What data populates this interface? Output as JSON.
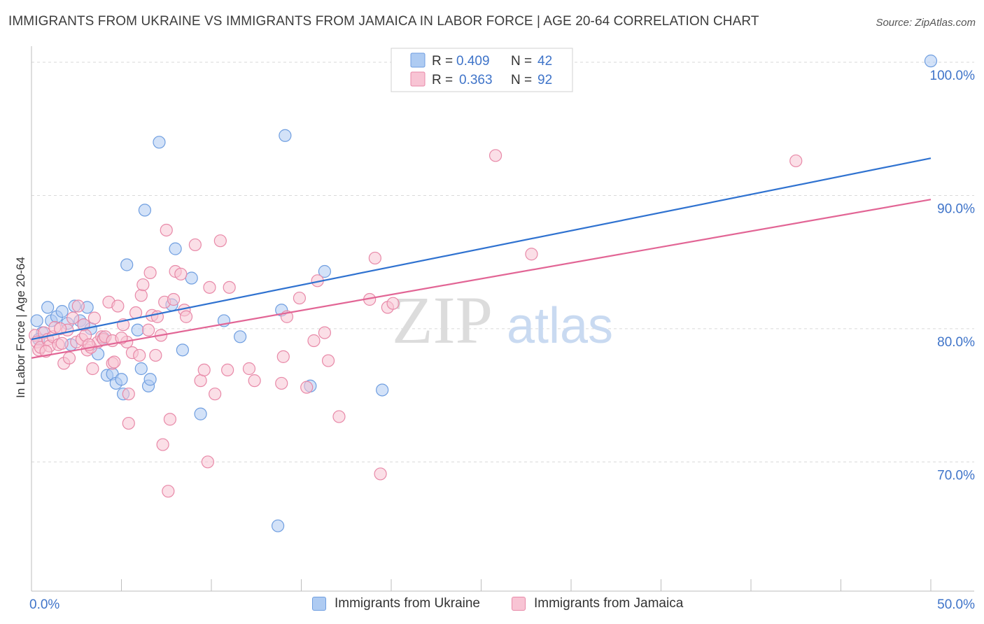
{
  "header": {
    "title": "IMMIGRANTS FROM UKRAINE VS IMMIGRANTS FROM JAMAICA IN LABOR FORCE | AGE 20-64 CORRELATION CHART",
    "source": "Source: ZipAtlas.com"
  },
  "watermark": {
    "zip": "ZIP",
    "atlas": "atlas"
  },
  "legend_top": {
    "rows": [
      {
        "r_label": "R =",
        "r_value": "0.409",
        "n_label": "N =",
        "n_value": "42"
      },
      {
        "r_label": "R =",
        "r_value": "0.363",
        "n_label": "N =",
        "n_value": "92"
      }
    ]
  },
  "legend_bottom": {
    "ukraine": "Immigrants from Ukraine",
    "jamaica": "Immigrants from Jamaica"
  },
  "colors": {
    "ukraine_fill": "#aecbf2",
    "ukraine_stroke": "#6f9ee0",
    "ukraine_line": "#2f72d0",
    "jamaica_fill": "#f8c4d4",
    "jamaica_stroke": "#e889a8",
    "jamaica_line": "#e26595",
    "axis_label": "#3f74c9",
    "grid": "#d9d9d9"
  },
  "chart_data": {
    "type": "scatter",
    "title": "IMMIGRANTS FROM UKRAINE VS IMMIGRANTS FROM JAMAICA IN LABOR FORCE | AGE 20-64 CORRELATION CHART",
    "xlabel": "",
    "ylabel": "In Labor Force | Age 20-64",
    "xlim": [
      0,
      50
    ],
    "ylim": [
      60.3,
      101
    ],
    "x_tick_labels": [
      "0.0%",
      "50.0%"
    ],
    "x_ticks": [
      0,
      5,
      10,
      15,
      20,
      25,
      30,
      35,
      40,
      45,
      50
    ],
    "y_ticks": [
      70,
      80,
      90,
      100
    ],
    "y_tick_labels": [
      "70.0%",
      "80.0%",
      "90.0%",
      "100.0%"
    ],
    "grid": true,
    "legend": "top-center",
    "series": [
      {
        "name": "Immigrants from Ukraine",
        "r": 0.409,
        "n": 42,
        "trend": [
          [
            0,
            79.2
          ],
          [
            50,
            92.8
          ]
        ],
        "points": [
          [
            0.3,
            80.6
          ],
          [
            0.6,
            79.7
          ],
          [
            0.4,
            79.2
          ],
          [
            0.9,
            81.6
          ],
          [
            1.1,
            80.6
          ],
          [
            1.4,
            80.9
          ],
          [
            1.7,
            81.3
          ],
          [
            2.0,
            80.4
          ],
          [
            2.2,
            78.8
          ],
          [
            2.4,
            81.7
          ],
          [
            2.7,
            80.6
          ],
          [
            2.9,
            80.3
          ],
          [
            3.1,
            81.6
          ],
          [
            3.3,
            80.0
          ],
          [
            3.7,
            78.1
          ],
          [
            4.0,
            79.3
          ],
          [
            4.2,
            76.5
          ],
          [
            4.5,
            76.6
          ],
          [
            4.7,
            75.9
          ],
          [
            5.0,
            76.2
          ],
          [
            5.1,
            75.1
          ],
          [
            5.3,
            84.8
          ],
          [
            5.9,
            79.9
          ],
          [
            6.1,
            77.0
          ],
          [
            6.3,
            88.9
          ],
          [
            6.5,
            75.7
          ],
          [
            6.6,
            76.2
          ],
          [
            7.1,
            94.0
          ],
          [
            7.8,
            81.8
          ],
          [
            8.0,
            86.0
          ],
          [
            8.4,
            78.4
          ],
          [
            8.9,
            83.8
          ],
          [
            9.4,
            73.6
          ],
          [
            10.7,
            80.6
          ],
          [
            11.6,
            79.4
          ],
          [
            13.7,
            65.2
          ],
          [
            13.9,
            81.4
          ],
          [
            14.1,
            94.5
          ],
          [
            15.5,
            75.7
          ],
          [
            16.3,
            84.3
          ],
          [
            19.5,
            75.4
          ],
          [
            50.0,
            100.1
          ]
        ]
      },
      {
        "name": "Immigrants from Jamaica",
        "r": 0.363,
        "n": 92,
        "trend": [
          [
            0,
            77.8
          ],
          [
            50,
            89.7
          ]
        ],
        "points": [
          [
            0.2,
            79.5
          ],
          [
            0.3,
            79.0
          ],
          [
            0.4,
            78.4
          ],
          [
            0.5,
            78.6
          ],
          [
            0.7,
            79.7
          ],
          [
            0.9,
            79.2
          ],
          [
            1.0,
            78.7
          ],
          [
            1.2,
            79.4
          ],
          [
            1.3,
            80.1
          ],
          [
            1.5,
            78.8
          ],
          [
            1.7,
            78.9
          ],
          [
            1.8,
            77.4
          ],
          [
            2.0,
            79.9
          ],
          [
            2.1,
            77.8
          ],
          [
            2.3,
            80.8
          ],
          [
            2.5,
            79.0
          ],
          [
            2.6,
            81.7
          ],
          [
            2.8,
            79.2
          ],
          [
            3.0,
            79.5
          ],
          [
            3.1,
            78.4
          ],
          [
            3.3,
            78.6
          ],
          [
            3.4,
            77.0
          ],
          [
            3.5,
            80.8
          ],
          [
            3.7,
            79.0
          ],
          [
            3.9,
            79.4
          ],
          [
            4.0,
            79.2
          ],
          [
            4.1,
            79.4
          ],
          [
            4.3,
            82.0
          ],
          [
            4.5,
            79.1
          ],
          [
            4.5,
            77.4
          ],
          [
            4.6,
            77.5
          ],
          [
            4.8,
            81.7
          ],
          [
            5.1,
            80.3
          ],
          [
            5.3,
            79.0
          ],
          [
            5.4,
            75.1
          ],
          [
            5.4,
            72.9
          ],
          [
            5.6,
            78.2
          ],
          [
            5.8,
            81.2
          ],
          [
            6.0,
            78.0
          ],
          [
            6.1,
            82.5
          ],
          [
            6.2,
            83.3
          ],
          [
            6.5,
            79.9
          ],
          [
            6.6,
            84.2
          ],
          [
            6.7,
            81.0
          ],
          [
            6.9,
            78.0
          ],
          [
            7.0,
            80.9
          ],
          [
            7.2,
            79.5
          ],
          [
            7.3,
            71.3
          ],
          [
            7.4,
            82.0
          ],
          [
            7.5,
            87.4
          ],
          [
            7.6,
            67.8
          ],
          [
            7.7,
            73.2
          ],
          [
            7.9,
            82.2
          ],
          [
            8.0,
            84.3
          ],
          [
            8.3,
            84.1
          ],
          [
            8.5,
            81.4
          ],
          [
            8.6,
            80.9
          ],
          [
            9.1,
            86.3
          ],
          [
            9.4,
            76.1
          ],
          [
            9.6,
            76.9
          ],
          [
            9.8,
            70.0
          ],
          [
            9.9,
            83.1
          ],
          [
            10.2,
            75.1
          ],
          [
            10.5,
            86.6
          ],
          [
            10.9,
            76.9
          ],
          [
            11.0,
            83.1
          ],
          [
            12.1,
            77.0
          ],
          [
            12.4,
            76.1
          ],
          [
            13.9,
            75.9
          ],
          [
            14.0,
            77.9
          ],
          [
            14.2,
            80.9
          ],
          [
            14.9,
            82.3
          ],
          [
            15.3,
            75.6
          ],
          [
            15.7,
            79.1
          ],
          [
            15.9,
            83.6
          ],
          [
            16.3,
            79.7
          ],
          [
            16.5,
            77.6
          ],
          [
            17.1,
            73.4
          ],
          [
            18.8,
            82.2
          ],
          [
            19.1,
            85.3
          ],
          [
            19.4,
            69.1
          ],
          [
            19.8,
            81.6
          ],
          [
            20.1,
            81.9
          ],
          [
            20.4,
            99.9
          ],
          [
            25.8,
            93.0
          ],
          [
            27.8,
            85.6
          ],
          [
            42.5,
            92.6
          ],
          [
            1.6,
            80.0
          ],
          [
            2.9,
            80.3
          ],
          [
            0.8,
            78.3
          ],
          [
            3.2,
            78.8
          ],
          [
            5.0,
            79.3
          ]
        ]
      }
    ]
  }
}
